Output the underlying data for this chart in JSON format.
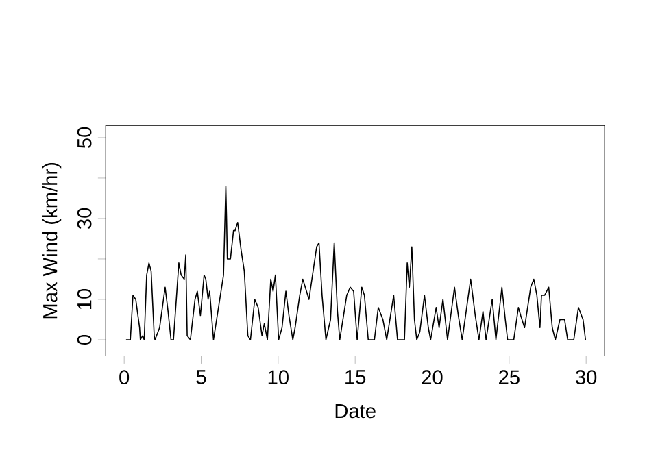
{
  "chart_data": {
    "type": "line",
    "xlabel": "Date",
    "ylabel": "Max Wind (km/hr)",
    "xlim": [
      -1.2,
      31.2
    ],
    "ylim": [
      -4,
      53
    ],
    "xticks": [
      0,
      5,
      10,
      15,
      20,
      25,
      30
    ],
    "yticks": [
      0,
      10,
      {
        "value": 20,
        "label": null
      },
      30,
      {
        "value": 40,
        "label": null
      },
      50
    ],
    "color": "#000000",
    "line_style": "solid",
    "marker": "none",
    "grid": false,
    "x": [
      0.12,
      0.4,
      0.57,
      0.75,
      1.0,
      1.05,
      1.2,
      1.3,
      1.46,
      1.61,
      1.75,
      1.95,
      2.0,
      2.3,
      2.66,
      2.85,
      3.04,
      3.2,
      3.55,
      3.7,
      3.9,
      4.0,
      4.09,
      4.3,
      4.6,
      4.75,
      4.95,
      5.19,
      5.3,
      5.45,
      5.55,
      5.8,
      6.45,
      6.6,
      6.65,
      6.7,
      6.9,
      7.1,
      7.2,
      7.37,
      7.6,
      7.8,
      8.03,
      8.2,
      8.48,
      8.7,
      8.95,
      9.1,
      9.3,
      9.52,
      9.67,
      9.82,
      10.03,
      10.25,
      10.5,
      10.7,
      10.95,
      11.1,
      11.4,
      11.6,
      12.0,
      12.5,
      12.65,
      12.85,
      13.1,
      13.4,
      13.64,
      13.85,
      14.0,
      14.45,
      14.68,
      14.9,
      15.13,
      15.43,
      15.6,
      15.85,
      16.25,
      16.5,
      16.8,
      17.05,
      17.5,
      17.75,
      18.2,
      18.38,
      18.52,
      18.68,
      18.85,
      19.0,
      19.2,
      19.5,
      19.75,
      19.9,
      20.26,
      20.45,
      20.7,
      21.0,
      21.45,
      21.7,
      21.95,
      22.5,
      22.8,
      23.04,
      23.3,
      23.5,
      23.9,
      24.14,
      24.53,
      24.75,
      24.9,
      25.3,
      25.6,
      25.75,
      26.0,
      26.4,
      26.6,
      26.8,
      27.0,
      27.1,
      27.3,
      27.57,
      27.8,
      28.0,
      28.3,
      28.6,
      28.8,
      29.2,
      29.5,
      29.8,
      29.96
    ],
    "values": [
      0,
      0,
      11,
      10,
      3,
      0,
      1,
      0,
      16,
      19,
      17,
      1,
      0,
      3,
      13,
      7,
      0,
      0,
      19,
      16,
      15,
      21,
      1,
      0,
      10,
      12,
      6,
      16,
      15,
      10,
      12,
      0,
      16,
      38,
      30,
      20,
      20,
      27,
      27,
      29,
      22,
      17,
      1,
      0,
      10,
      8,
      1,
      4,
      0,
      15,
      12,
      16,
      0,
      3,
      12,
      6,
      0,
      3,
      11,
      15,
      10,
      23,
      24,
      11,
      0,
      5,
      24,
      7,
      0,
      11,
      13,
      12,
      0,
      13,
      11,
      0,
      0,
      8,
      5,
      0,
      11,
      0,
      0,
      19,
      13,
      23,
      5,
      0,
      2,
      11,
      3,
      0,
      8,
      3,
      10,
      0,
      13,
      6,
      0,
      15,
      6,
      0,
      7,
      0,
      10,
      0,
      13,
      5,
      0,
      0,
      8,
      6,
      3,
      13,
      15,
      11,
      3,
      11,
      11,
      13,
      3,
      0,
      5,
      5,
      0,
      0,
      8,
      5,
      0
    ]
  }
}
